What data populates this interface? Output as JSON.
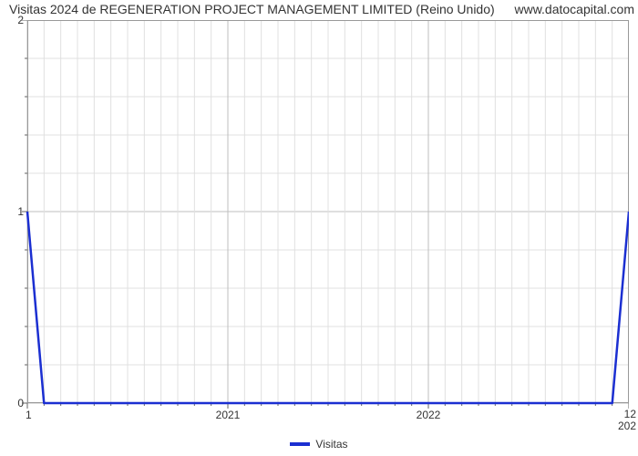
{
  "chart": {
    "type": "line",
    "title": "Visitas 2024 de REGENERATION PROJECT MANAGEMENT LIMITED (Reino Unido)",
    "watermark": "www.datocapital.com",
    "title_fontsize": 14,
    "title_color": "#333333",
    "background_color": "#ffffff",
    "plot_border_color": "#999999",
    "grid_major_color": "#bfbfbf",
    "grid_minor_color": "#e0e0e0",
    "axis_tick_color": "#666666",
    "line_color": "#1b2fd1",
    "line_width": 2.5,
    "xlim": [
      2020,
      2023
    ],
    "ylim": [
      0,
      2
    ],
    "x_ticks_major": [
      2021,
      2022
    ],
    "x_end_left": "1",
    "x_end_right": "12\n202",
    "y_ticks_major": [
      0,
      1,
      2
    ],
    "y_minor_count": 4,
    "x_minor_per_year": 12,
    "series": {
      "name": "Visitas",
      "x": [
        2020.0,
        2020.083,
        2022.917,
        2023.0
      ],
      "y": [
        1.0,
        0.0,
        0.0,
        1.0
      ]
    },
    "legend": {
      "label": "Visitas",
      "swatch_color": "#1b2fd1"
    },
    "label_fontsize": 12
  }
}
